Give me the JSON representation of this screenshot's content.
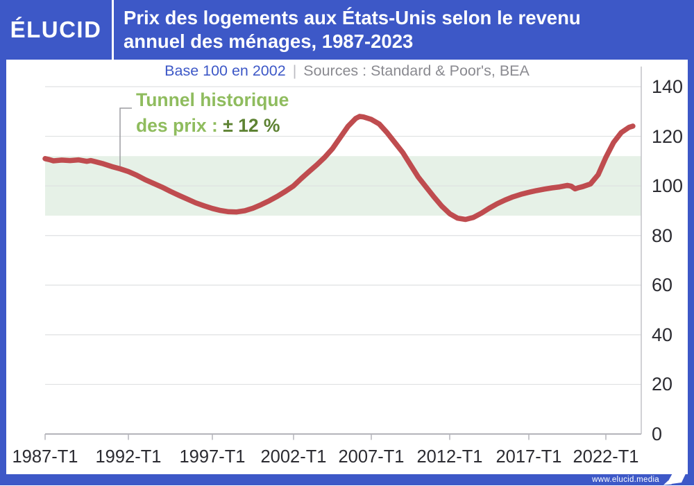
{
  "header": {
    "logo": "ÉLUCID",
    "title_line1": "Prix des logements aux États-Unis selon le revenu",
    "title_line2": "annuel des ménages, 1987-2023"
  },
  "subtitle": {
    "base": "Base 100 en 2002",
    "separator": "|",
    "sources": "Sources : Standard & Poor's, BEA"
  },
  "annotation": {
    "line1": "Tunnel historique",
    "line2_prefix": "des prix : ",
    "line2_value": "± 12 %"
  },
  "footer": {
    "url": "www.elucid.media"
  },
  "colors": {
    "brand_blue": "#3d58c7",
    "line_red": "#bf4c4f",
    "band_green": "#e6f1e7",
    "annotation_green": "#8fbc5e",
    "annotation_dark_green": "#5d8232",
    "grid_gray": "#dfe1e2",
    "axis_gray": "#b4b4ba"
  },
  "chart_data": {
    "type": "line",
    "title": "Prix des logements aux États-Unis selon le revenu annuel des ménages, 1987-2023",
    "subtitle": "Base 100 en 2002",
    "sources": "Standard & Poor's, BEA",
    "xlabel": "",
    "ylabel": "",
    "ylim": [
      0,
      140
    ],
    "y_ticks": [
      0,
      20,
      40,
      60,
      80,
      100,
      120,
      140
    ],
    "x_tick_labels": [
      "1987-T1",
      "1992-T1",
      "1997-T1",
      "2002-T1",
      "2007-T1",
      "2012-T1",
      "2017-T1",
      "2022-T1"
    ],
    "x_tick_years": [
      1987,
      1992,
      1997,
      2002,
      2007,
      2012,
      2017,
      2022
    ],
    "x_range": [
      1987,
      2023.75
    ],
    "grid": true,
    "legend": "none",
    "band": {
      "label": "Tunnel historique des prix : ± 12 %",
      "from": 88,
      "to": 112
    },
    "series": [
      {
        "points": [
          [
            1987.0,
            111.0
          ],
          [
            1987.25,
            110.6
          ],
          [
            1987.5,
            110.1
          ],
          [
            1988.0,
            110.4
          ],
          [
            1988.5,
            110.2
          ],
          [
            1989.0,
            110.5
          ],
          [
            1989.5,
            109.9
          ],
          [
            1989.75,
            110.2
          ],
          [
            1990.0,
            109.8
          ],
          [
            1990.5,
            108.9
          ],
          [
            1991.0,
            107.8
          ],
          [
            1991.5,
            106.9
          ],
          [
            1992.0,
            105.8
          ],
          [
            1992.5,
            104.3
          ],
          [
            1993.0,
            102.5
          ],
          [
            1993.5,
            101.0
          ],
          [
            1994.0,
            99.5
          ],
          [
            1994.5,
            97.8
          ],
          [
            1995.0,
            96.2
          ],
          [
            1995.5,
            94.7
          ],
          [
            1996.0,
            93.2
          ],
          [
            1996.5,
            92.0
          ],
          [
            1997.0,
            90.9
          ],
          [
            1997.5,
            90.1
          ],
          [
            1998.0,
            89.6
          ],
          [
            1998.5,
            89.5
          ],
          [
            1999.0,
            90.0
          ],
          [
            1999.5,
            91.0
          ],
          [
            2000.0,
            92.4
          ],
          [
            2000.5,
            94.0
          ],
          [
            2001.0,
            95.8
          ],
          [
            2001.5,
            97.8
          ],
          [
            2002.0,
            100.0
          ],
          [
            2002.5,
            103.0
          ],
          [
            2003.0,
            105.8
          ],
          [
            2003.5,
            108.5
          ],
          [
            2004.0,
            111.5
          ],
          [
            2004.5,
            115.0
          ],
          [
            2005.0,
            119.5
          ],
          [
            2005.5,
            124.0
          ],
          [
            2006.0,
            127.2
          ],
          [
            2006.25,
            128.0
          ],
          [
            2006.5,
            127.8
          ],
          [
            2007.0,
            126.8
          ],
          [
            2007.5,
            125.0
          ],
          [
            2008.0,
            121.5
          ],
          [
            2008.5,
            117.5
          ],
          [
            2009.0,
            113.5
          ],
          [
            2009.5,
            108.5
          ],
          [
            2010.0,
            103.5
          ],
          [
            2010.5,
            99.5
          ],
          [
            2011.0,
            95.5
          ],
          [
            2011.5,
            91.8
          ],
          [
            2012.0,
            88.8
          ],
          [
            2012.5,
            87.0
          ],
          [
            2013.0,
            86.5
          ],
          [
            2013.5,
            87.3
          ],
          [
            2014.0,
            89.0
          ],
          [
            2014.5,
            91.0
          ],
          [
            2015.0,
            92.8
          ],
          [
            2015.5,
            94.3
          ],
          [
            2016.0,
            95.6
          ],
          [
            2016.5,
            96.6
          ],
          [
            2017.0,
            97.4
          ],
          [
            2017.5,
            98.1
          ],
          [
            2018.0,
            98.7
          ],
          [
            2018.5,
            99.2
          ],
          [
            2019.0,
            99.6
          ],
          [
            2019.5,
            100.2
          ],
          [
            2019.75,
            99.9
          ],
          [
            2020.0,
            98.8
          ],
          [
            2020.25,
            99.3
          ],
          [
            2020.5,
            99.7
          ],
          [
            2021.0,
            100.8
          ],
          [
            2021.5,
            104.5
          ],
          [
            2022.0,
            111.5
          ],
          [
            2022.5,
            117.5
          ],
          [
            2023.0,
            121.5
          ],
          [
            2023.5,
            123.6
          ],
          [
            2023.75,
            124.1
          ]
        ]
      }
    ]
  }
}
